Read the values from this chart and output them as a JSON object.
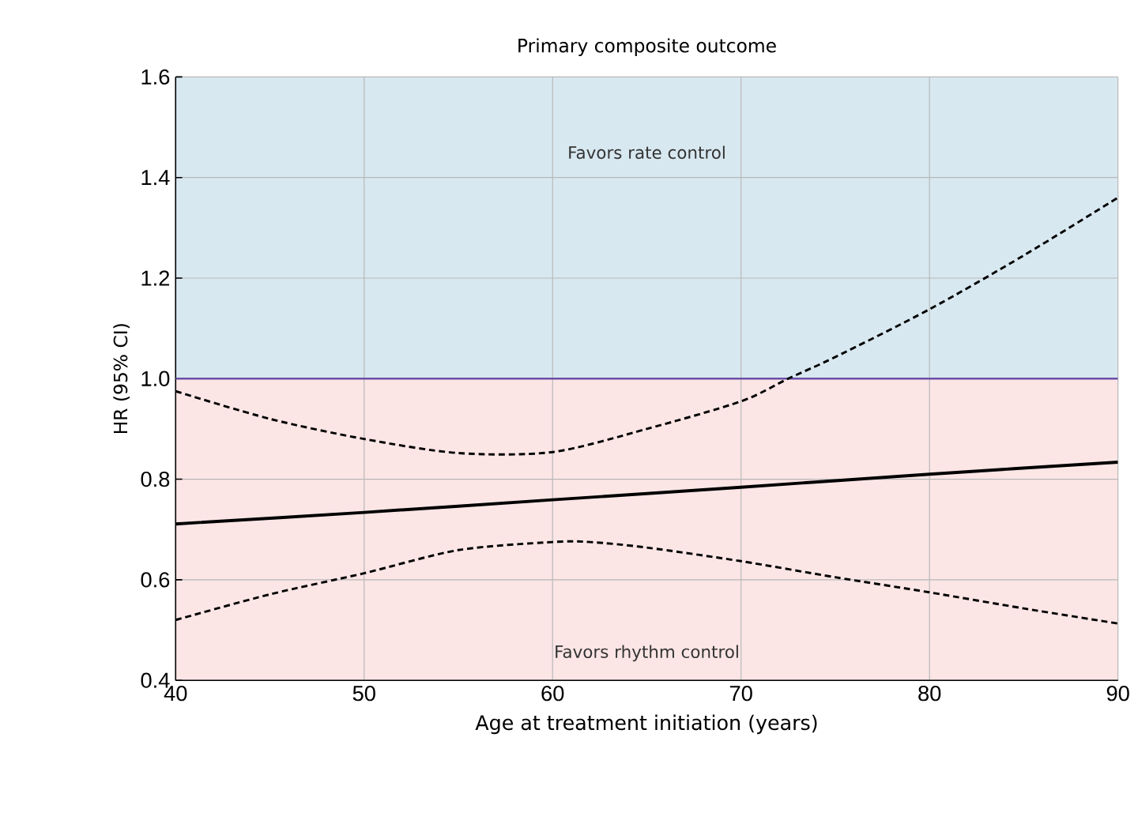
{
  "chart_data": {
    "type": "line",
    "title": "Primary composite outcome",
    "xlabel": "Age at treatment initiation (years)",
    "ylabel": "HR (95% CI)",
    "xlim": [
      40,
      90
    ],
    "xticks": [
      40,
      50,
      60,
      70,
      80,
      90
    ],
    "ylim": [
      0.4,
      1.6
    ],
    "yticks": [
      {
        "value": 0.4,
        "label": "0.4"
      },
      {
        "value": 0.6,
        "label": "0.6"
      },
      {
        "value": 0.8,
        "label": "0.8"
      },
      {
        "value": 1.0,
        "label": "1.0"
      },
      {
        "value": 1.2,
        "label": "1.2"
      },
      {
        "value": 1.4,
        "label": "1.4"
      },
      {
        "value": 1.6,
        "label": "1.6"
      }
    ],
    "grid": true,
    "marker": "none",
    "bands": [
      {
        "axis": "y",
        "from": 1.0,
        "to": 1.6,
        "label": "Favors rate control",
        "color": "#d8e8f0"
      },
      {
        "axis": "y",
        "from": 0.4,
        "to": 1.0,
        "label": "Favors rhythm control",
        "color": "#fbe5e5"
      }
    ],
    "ref_lines": [
      {
        "axis": "y",
        "value": 1.0,
        "color": "#6a4fa8"
      }
    ],
    "series": [
      {
        "color": "#000000",
        "line_style": "solid",
        "x": [
          40,
          50,
          60,
          70,
          80,
          90
        ],
        "values": [
          0.711,
          0.734,
          0.759,
          0.784,
          0.81,
          0.834
        ]
      },
      {
        "color": "#000000",
        "line_style": "dashed",
        "x": [
          40,
          45,
          50,
          55,
          60,
          65,
          70,
          72.5,
          75,
          80,
          85,
          90
        ],
        "values": [
          0.975,
          0.92,
          0.88,
          0.852,
          0.854,
          0.9,
          0.955,
          1.0,
          1.043,
          1.138,
          1.245,
          1.36
        ]
      },
      {
        "color": "#000000",
        "line_style": "dashed",
        "x": [
          40,
          45,
          50,
          55,
          60,
          62,
          65,
          70,
          75,
          80,
          85,
          90
        ],
        "values": [
          0.52,
          0.571,
          0.613,
          0.659,
          0.675,
          0.675,
          0.664,
          0.637,
          0.605,
          0.575,
          0.543,
          0.513
        ]
      }
    ]
  }
}
